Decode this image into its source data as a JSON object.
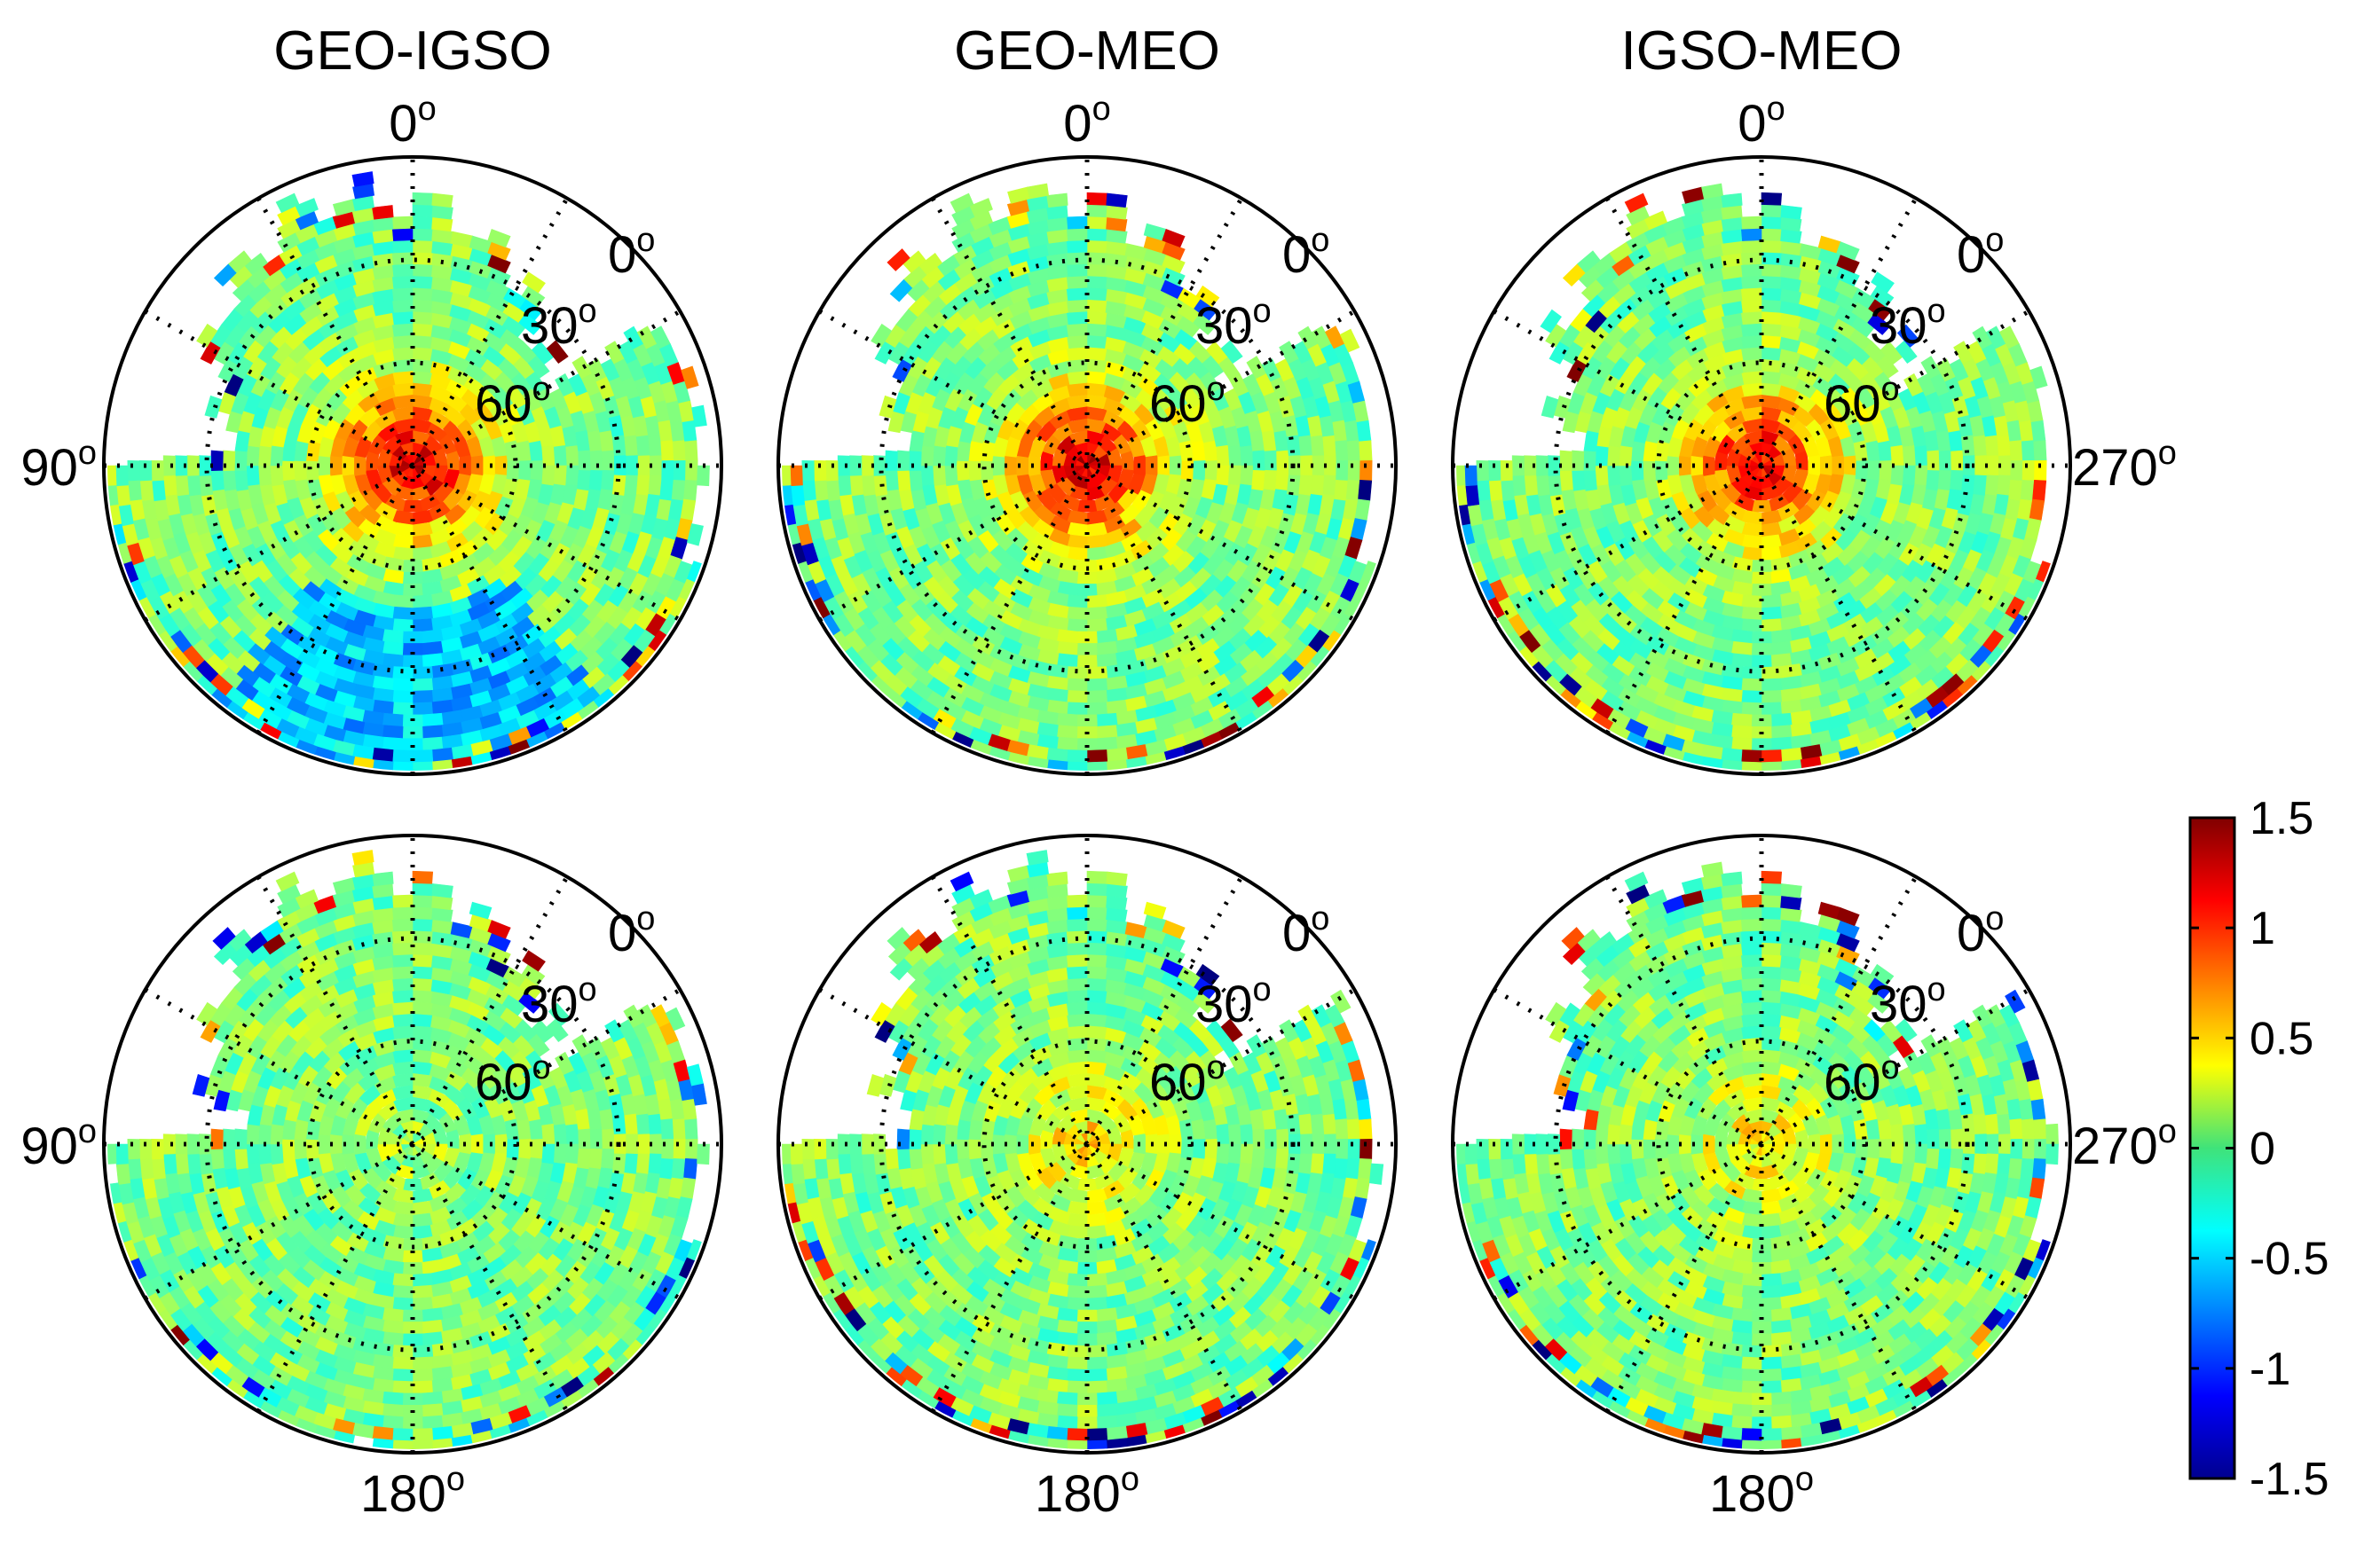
{
  "chart_data": {
    "type": "heatmap",
    "subtype": "polar sky plots (skyplot grid of 2 rows x 3 columns)",
    "column_titles": [
      "GEO-IGSO",
      "GEO-MEO",
      "IGSO-MEO"
    ],
    "azimuth_labels": {
      "top": "0",
      "left": "90",
      "right": "270",
      "bottom": "180"
    },
    "elevation_ring_labels": [
      "0",
      "30",
      "60"
    ],
    "degree_symbol": "o",
    "panels": [
      {
        "row": 1,
        "column": "GEO-IGSO",
        "center_value": 1.2,
        "top_label": "0",
        "left_label": "90",
        "right_label": "",
        "bottom_label": "",
        "pattern": "strong positive core near zenith, negative south sector"
      },
      {
        "row": 1,
        "column": "GEO-MEO",
        "center_value": 1.2,
        "top_label": "0",
        "left_label": "",
        "right_label": "",
        "bottom_label": "",
        "pattern": "strong positive core near zenith"
      },
      {
        "row": 1,
        "column": "IGSO-MEO",
        "center_value": 1.1,
        "top_label": "0",
        "left_label": "",
        "right_label": "270",
        "bottom_label": "",
        "pattern": "positive core near zenith"
      },
      {
        "row": 2,
        "column": "GEO-IGSO",
        "center_value": 0.1,
        "top_label": "",
        "left_label": "90",
        "right_label": "",
        "bottom_label": "180",
        "pattern": "near zero everywhere"
      },
      {
        "row": 2,
        "column": "GEO-MEO",
        "center_value": 0.45,
        "top_label": "",
        "left_label": "",
        "right_label": "",
        "bottom_label": "180",
        "pattern": "weak positive core"
      },
      {
        "row": 2,
        "column": "IGSO-MEO",
        "center_value": 0.4,
        "top_label": "",
        "left_label": "",
        "right_label": "270",
        "bottom_label": "180",
        "pattern": "weak positive core"
      }
    ],
    "colorbar": {
      "colormap": "jet",
      "range": [
        -1.5,
        1.5
      ],
      "ticks": [
        "1.5",
        "1",
        "0.5",
        "0",
        "-0.5",
        "-1",
        "-1.5"
      ]
    },
    "grid": "dotted radial lines every 30 degrees and elevation rings at 30 and 60 degrees"
  }
}
